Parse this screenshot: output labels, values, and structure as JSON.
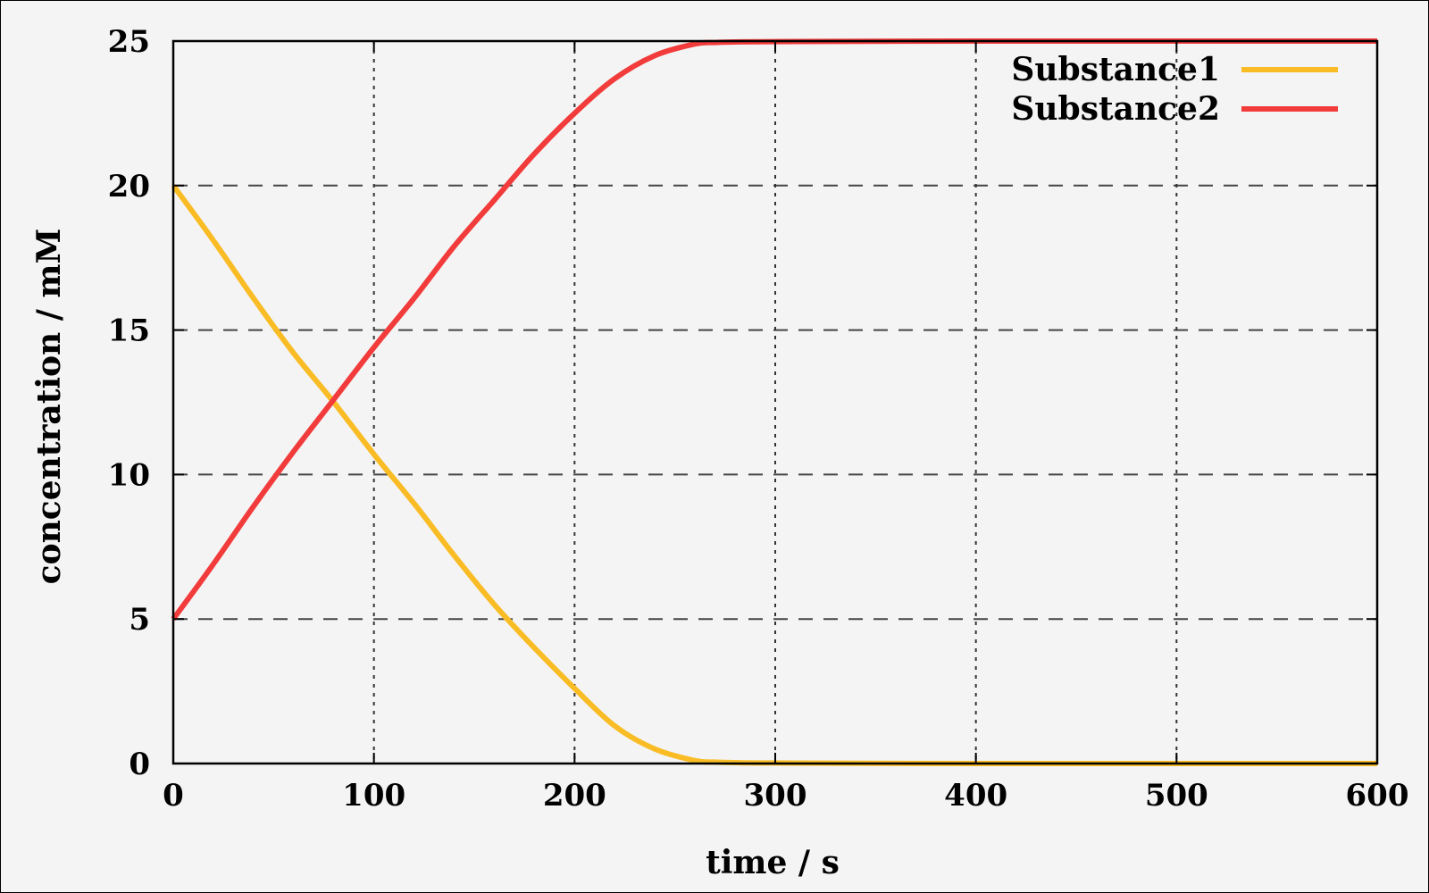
{
  "chart_data": {
    "type": "line",
    "xlabel": "time / s",
    "ylabel": "concentration / mM",
    "xlim": [
      0,
      600
    ],
    "ylim": [
      0,
      25
    ],
    "xticks": [
      0,
      100,
      200,
      300,
      400,
      500,
      600
    ],
    "yticks": [
      0,
      5,
      10,
      15,
      20,
      25
    ],
    "grid": true,
    "legend_position": "top-right",
    "series": [
      {
        "name": "Substance1",
        "color": "#f9bc25",
        "x": [
          0,
          20,
          40,
          60,
          80,
          100,
          120,
          140,
          160,
          180,
          200,
          220,
          240,
          260,
          270,
          280,
          300,
          400,
          500,
          600
        ],
        "y": [
          20,
          18.1,
          16.1,
          14.2,
          12.5,
          10.7,
          9.0,
          7.2,
          5.5,
          4.0,
          2.6,
          1.3,
          0.5,
          0.1,
          0.05,
          0.03,
          0.02,
          0,
          0,
          0
        ]
      },
      {
        "name": "Substance2",
        "color": "#f23b3b",
        "x": [
          0,
          20,
          40,
          60,
          80,
          100,
          120,
          140,
          160,
          180,
          200,
          220,
          240,
          260,
          270,
          280,
          300,
          400,
          500,
          600
        ],
        "y": [
          5,
          6.9,
          8.9,
          10.8,
          12.6,
          14.4,
          16.1,
          17.9,
          19.5,
          21.1,
          22.5,
          23.7,
          24.5,
          24.9,
          24.95,
          24.97,
          24.98,
          25,
          25,
          25
        ]
      }
    ]
  }
}
